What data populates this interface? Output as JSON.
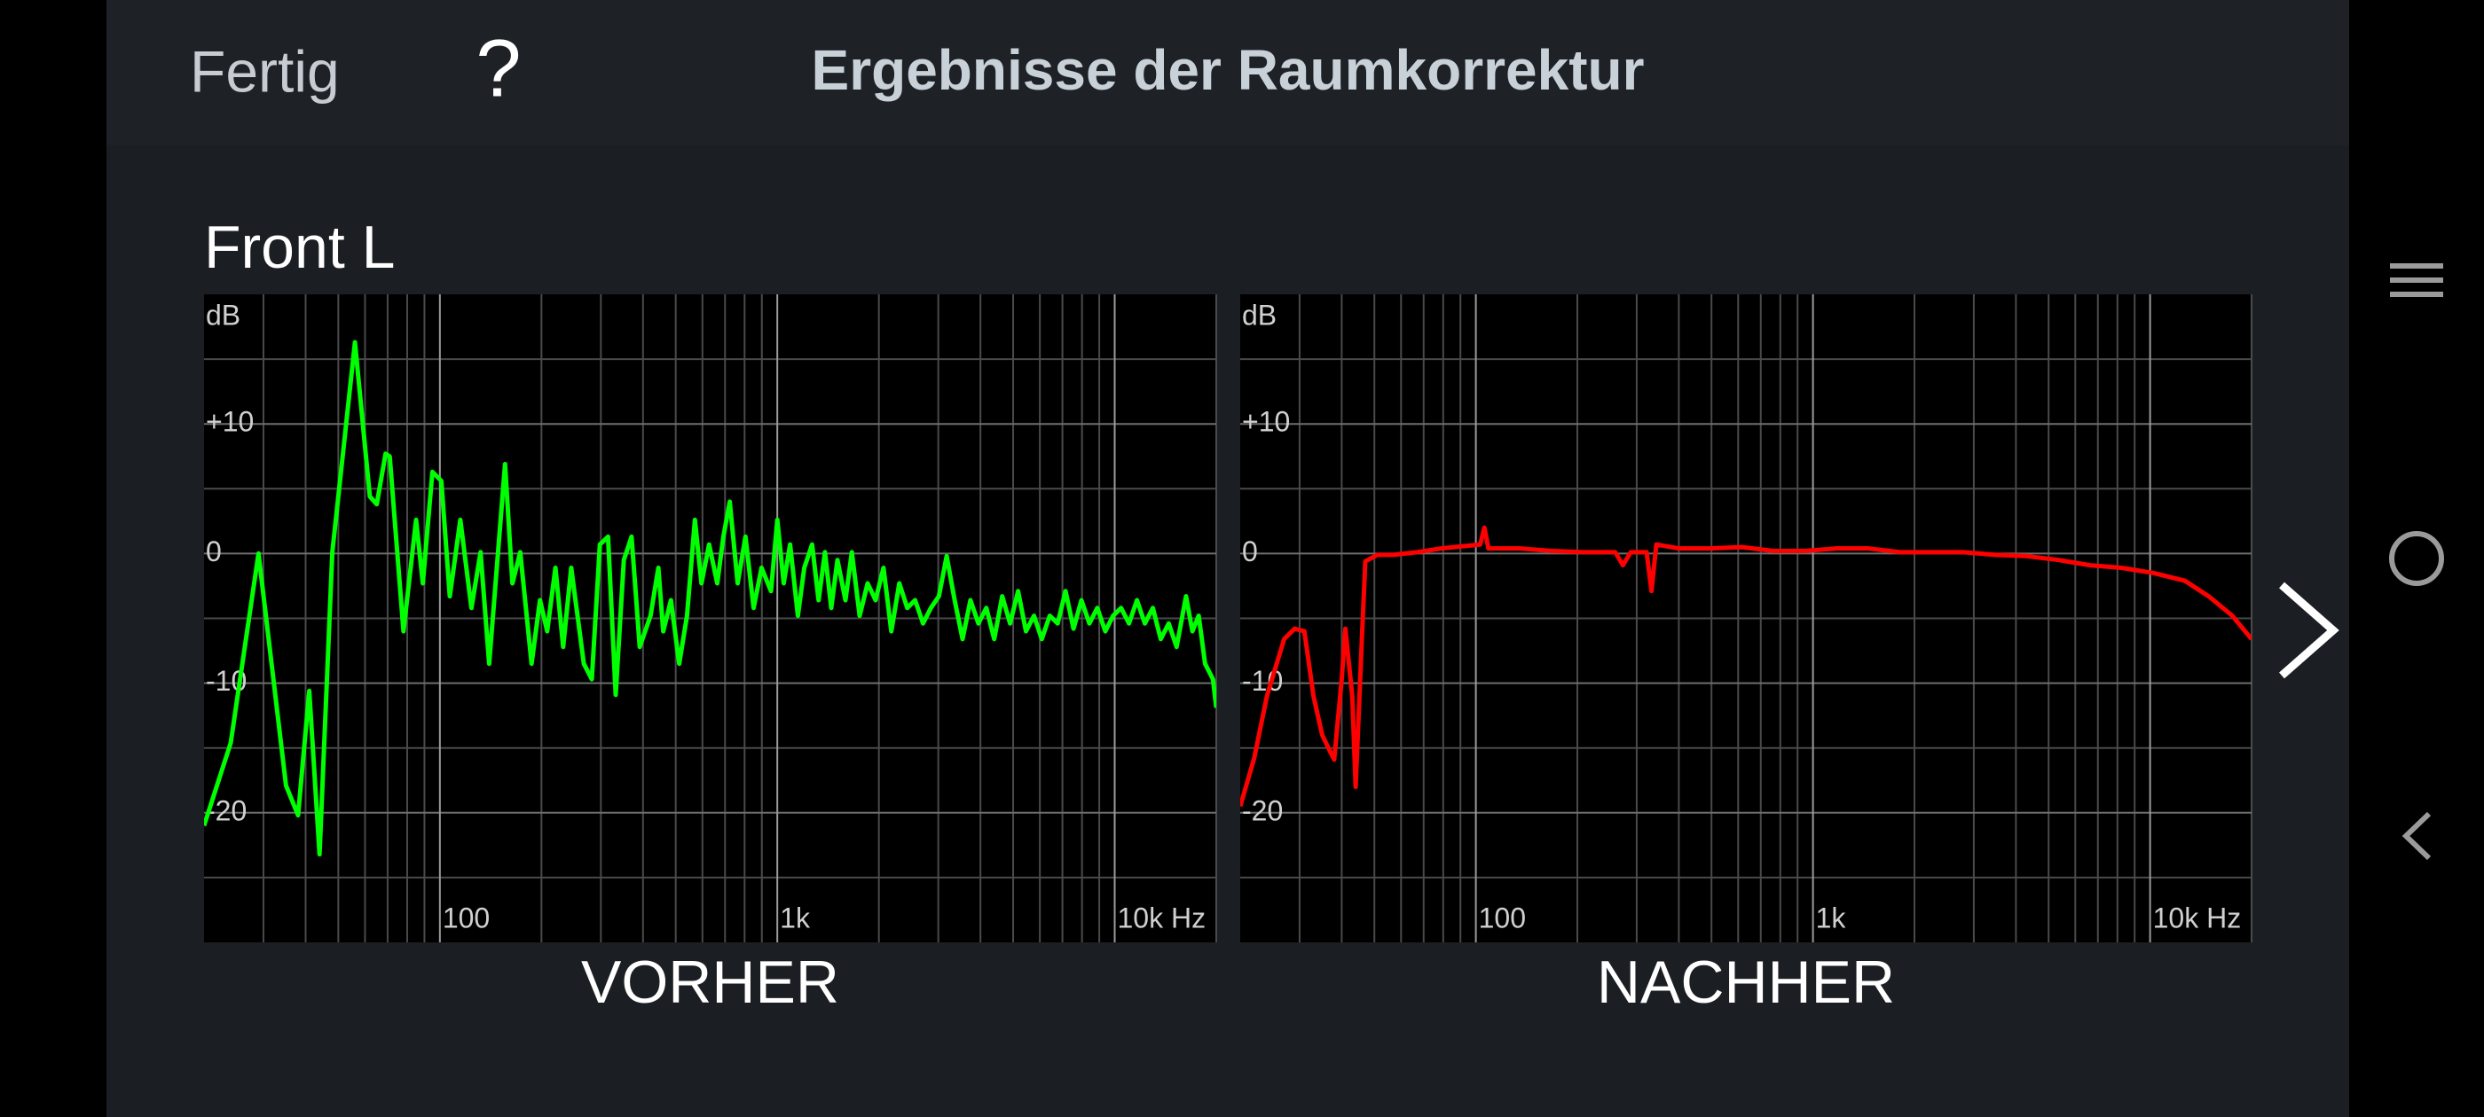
{
  "header": {
    "done": "Fertig",
    "help": "?",
    "title": "Ergebnisse der Raumkorrektur"
  },
  "channel": "Front L",
  "chart_data": [
    {
      "type": "line",
      "y_unit": "dB",
      "caption": "VORHER",
      "xscale": "log",
      "xlim": [
        20,
        20000
      ],
      "ylim": [
        -30,
        20
      ],
      "xticks": [
        100,
        {
          "value": 1000,
          "label": "1k"
        },
        {
          "value": 10000,
          "label": "10k Hz"
        }
      ],
      "yticks": [
        {
          "value": 10,
          "label": "+10"
        },
        0,
        -10,
        -20
      ],
      "xgrid": [
        30,
        40,
        50,
        60,
        70,
        80,
        90,
        200,
        300,
        400,
        500,
        600,
        700,
        800,
        900,
        2000,
        3000,
        4000,
        5000,
        6000,
        7000,
        8000,
        9000,
        20000
      ],
      "ygrid": [
        15,
        5,
        -5,
        -15,
        -25
      ],
      "x": [
        20,
        24,
        29,
        35,
        38,
        41,
        44,
        48,
        56,
        62,
        65,
        69,
        71,
        78,
        85,
        89,
        95,
        101,
        107,
        115,
        124,
        132,
        140,
        156,
        164,
        173,
        187,
        198,
        208,
        220,
        232,
        245,
        267,
        282,
        298,
        315,
        332,
        351,
        370,
        391,
        421,
        444,
        459,
        484,
        512,
        540,
        570,
        596,
        628,
        664,
        692,
        723,
        763,
        805,
        851,
        898,
        958,
        1000,
        1045,
        1091,
        1151,
        1202,
        1268,
        1325,
        1384,
        1445,
        1508,
        1592,
        1663,
        1754,
        1852,
        1955,
        2064,
        2178,
        2299,
        2428,
        2561,
        2704,
        2853,
        3012,
        3177,
        3354,
        3540,
        3737,
        3945,
        4165,
        4395,
        4641,
        4898,
        5172,
        5458,
        5763,
        6081,
        6421,
        6776,
        7151,
        7551,
        7968,
        8414,
        8879,
        9376,
        9894,
        10447,
        11024,
        11641,
        12284,
        12972,
        13689,
        14455,
        15254,
        16271,
        16998,
        17746,
        18528,
        19554,
        20000
      ],
      "series": [
        {
          "color": "#00ff00",
          "values": [
            -21.0,
            -14.6,
            0,
            -17.9,
            -20.2,
            -10.6,
            -23.2,
            0.1,
            16.3,
            4.4,
            3.8,
            7.7,
            7.5,
            -6.0,
            2.6,
            -2.3,
            6.3,
            5.6,
            -3.3,
            2.6,
            -4.2,
            0.1,
            -8.5,
            6.9,
            -2.3,
            0.1,
            -8.5,
            -3.6,
            -6.0,
            -1.1,
            -7.2,
            -1.1,
            -8.5,
            -9.7,
            0.7,
            1.3,
            -10.9,
            -0.5,
            1.3,
            -7.2,
            -4.8,
            -1.1,
            -6.0,
            -3.6,
            -8.5,
            -4.8,
            2.6,
            -2.3,
            0.7,
            -2.3,
            1.3,
            4.0,
            -2.3,
            1.3,
            -4.2,
            -1.1,
            -2.9,
            2.6,
            -2.3,
            0.7,
            -4.8,
            -1.1,
            0.7,
            -3.6,
            0.1,
            -4.2,
            -0.5,
            -3.6,
            0.1,
            -4.8,
            -2.3,
            -3.6,
            -1.1,
            -6.0,
            -2.3,
            -4.2,
            -3.6,
            -5.4,
            -4.2,
            -3.3,
            -0.2,
            -3.6,
            -6.6,
            -3.6,
            -5.4,
            -4.2,
            -6.6,
            -3.3,
            -5.4,
            -2.9,
            -6.0,
            -4.8,
            -6.6,
            -4.8,
            -5.4,
            -2.9,
            -5.8,
            -3.6,
            -5.4,
            -4.2,
            -6.0,
            -4.8,
            -4.2,
            -5.4,
            -3.6,
            -5.4,
            -4.2,
            -6.6,
            -5.4,
            -7.2,
            -3.3,
            -6.0,
            -4.8,
            -8.5,
            -9.7,
            -11.9
          ]
        }
      ]
    },
    {
      "type": "line",
      "y_unit": "dB",
      "caption": "NACHHER",
      "xscale": "log",
      "xlim": [
        20,
        20000
      ],
      "ylim": [
        -30,
        20
      ],
      "xticks": [
        100,
        {
          "value": 1000,
          "label": "1k"
        },
        {
          "value": 10000,
          "label": "10k Hz"
        }
      ],
      "yticks": [
        {
          "value": 10,
          "label": "+10"
        },
        0,
        -10,
        -20
      ],
      "xgrid": [
        30,
        40,
        50,
        60,
        70,
        80,
        90,
        200,
        300,
        400,
        500,
        600,
        700,
        800,
        900,
        2000,
        3000,
        4000,
        5000,
        6000,
        7000,
        8000,
        9000,
        20000
      ],
      "ygrid": [
        15,
        5,
        -5,
        -15,
        -25
      ],
      "x": [
        20,
        22,
        24,
        27,
        29,
        31,
        33,
        35,
        37,
        38,
        40,
        41,
        43,
        44,
        46,
        47,
        51,
        57,
        67,
        79,
        103,
        106,
        109,
        135,
        168,
        208,
        259,
        273,
        288,
        321,
        332,
        343,
        399,
        495,
        615,
        763,
        948,
        1175,
        1459,
        1811,
        2249,
        2793,
        3467,
        4305,
        5346,
        6637,
        8222,
        10211,
        12677,
        14914,
        17531,
        20000
      ],
      "series": [
        {
          "color": "#ff0000",
          "values": [
            -19.5,
            -15.8,
            -11.0,
            -6.6,
            -5.8,
            -6.0,
            -11.0,
            -14.0,
            -15.3,
            -15.9,
            -9.7,
            -5.8,
            -11.0,
            -18.0,
            -6.0,
            -0.6,
            -0.1,
            -0.1,
            0.1,
            0.4,
            0.7,
            2.0,
            0.4,
            0.4,
            0.2,
            0.1,
            0.1,
            -0.9,
            0.1,
            0.1,
            -2.9,
            0.7,
            0.4,
            0.4,
            0.5,
            0.2,
            0.2,
            0.4,
            0.4,
            0.1,
            0.1,
            0.1,
            -0.1,
            -0.2,
            -0.5,
            -0.9,
            -1.1,
            -1.5,
            -2.1,
            -3.3,
            -4.8,
            -6.6
          ]
        }
      ]
    }
  ]
}
